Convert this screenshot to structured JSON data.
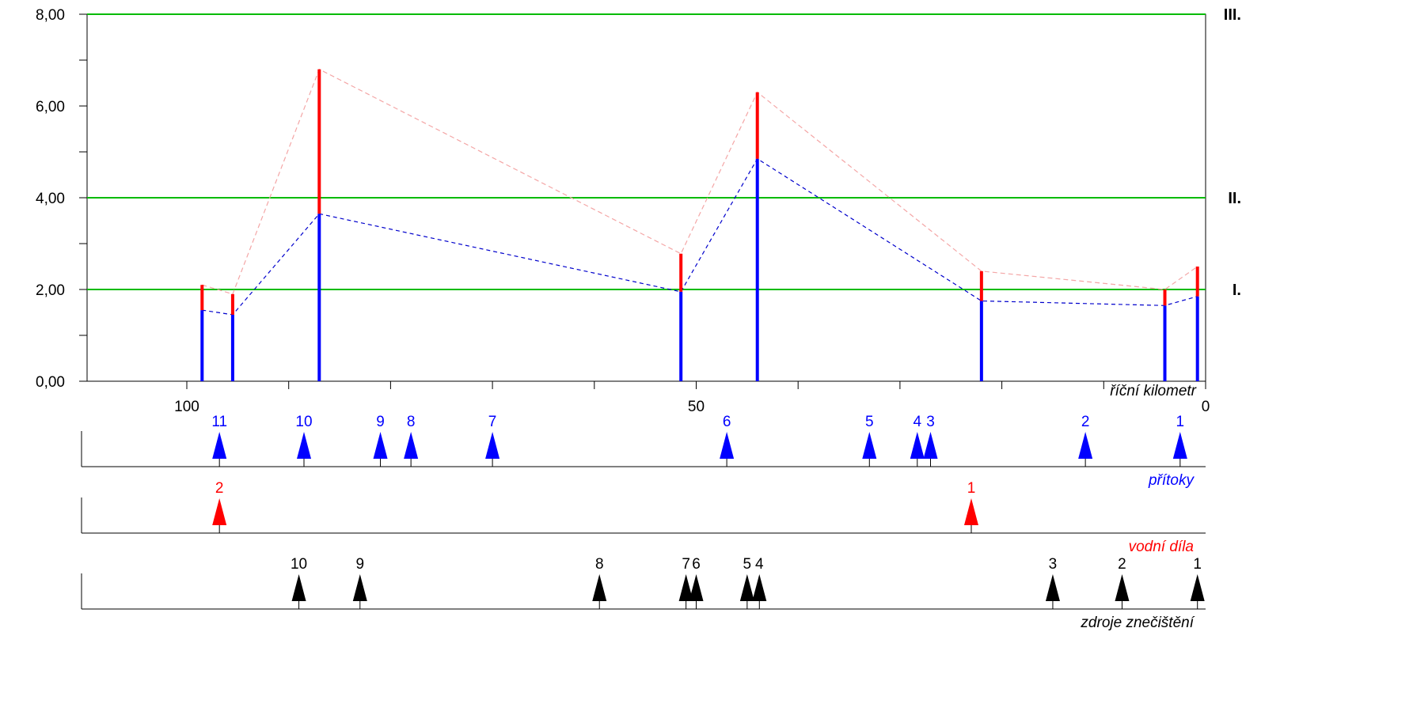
{
  "chart_data": {
    "type": "bar",
    "title": "",
    "xlabel": "říční kilometr",
    "ylabel": "",
    "ylim": [
      0,
      8
    ],
    "xlim": [
      110,
      0
    ],
    "y_ticks": [
      "0,00",
      "2,00",
      "4,00",
      "6,00",
      "8,00"
    ],
    "y_tick_values": [
      0,
      2,
      4,
      6,
      8
    ],
    "x_ticks": [
      "100",
      "50",
      "0"
    ],
    "x_tick_values": [
      100,
      50,
      0
    ],
    "class_limits": [
      {
        "label": "I.",
        "value": 2
      },
      {
        "label": "II.",
        "value": 4
      },
      {
        "label": "III.",
        "value": 8
      }
    ],
    "stations": [
      {
        "km": 98.5,
        "min": 1.55,
        "max": 2.1
      },
      {
        "km": 95.5,
        "min": 1.45,
        "max": 1.9
      },
      {
        "km": 87,
        "min": 3.65,
        "max": 6.8
      },
      {
        "km": 51.5,
        "min": 1.95,
        "max": 2.78
      },
      {
        "km": 44,
        "min": 4.85,
        "max": 6.3
      },
      {
        "km": 22,
        "min": 1.75,
        "max": 2.4
      },
      {
        "km": 4,
        "min": 1.65,
        "max": 2.0
      },
      {
        "km": 0.8,
        "min": 1.85,
        "max": 2.5
      }
    ],
    "colors": {
      "min": "#0000ff",
      "max": "#ff0000",
      "limit": "#00bb00",
      "min_line": "#0000cc",
      "max_line": "#f4a6a6"
    }
  },
  "tracks": [
    {
      "label": "přítoky",
      "color": "#0000ff",
      "markers": [
        {
          "num": "11",
          "km": 96.8
        },
        {
          "num": "10",
          "km": 88.5
        },
        {
          "num": "9",
          "km": 81
        },
        {
          "num": "8",
          "km": 78
        },
        {
          "num": "7",
          "km": 70
        },
        {
          "num": "6",
          "km": 47
        },
        {
          "num": "5",
          "km": 33
        },
        {
          "num": "4",
          "km": 28.3
        },
        {
          "num": "3",
          "km": 27
        },
        {
          "num": "2",
          "km": 11.8
        },
        {
          "num": "1",
          "km": 2.5
        }
      ]
    },
    {
      "label": "vodní díla",
      "color": "#ff0000",
      "markers": [
        {
          "num": "2",
          "km": 96.8
        },
        {
          "num": "1",
          "km": 23
        }
      ]
    },
    {
      "label": "zdroje znečištění",
      "color": "#000000",
      "markers": [
        {
          "num": "10",
          "km": 89
        },
        {
          "num": "9",
          "km": 83
        },
        {
          "num": "8",
          "km": 59.5
        },
        {
          "num": "7",
          "km": 51
        },
        {
          "num": "6",
          "km": 50
        },
        {
          "num": "5",
          "km": 45
        },
        {
          "num": "4",
          "km": 43.8
        },
        {
          "num": "3",
          "km": 15
        },
        {
          "num": "2",
          "km": 8.2
        },
        {
          "num": "1",
          "km": 0.8
        }
      ]
    }
  ]
}
